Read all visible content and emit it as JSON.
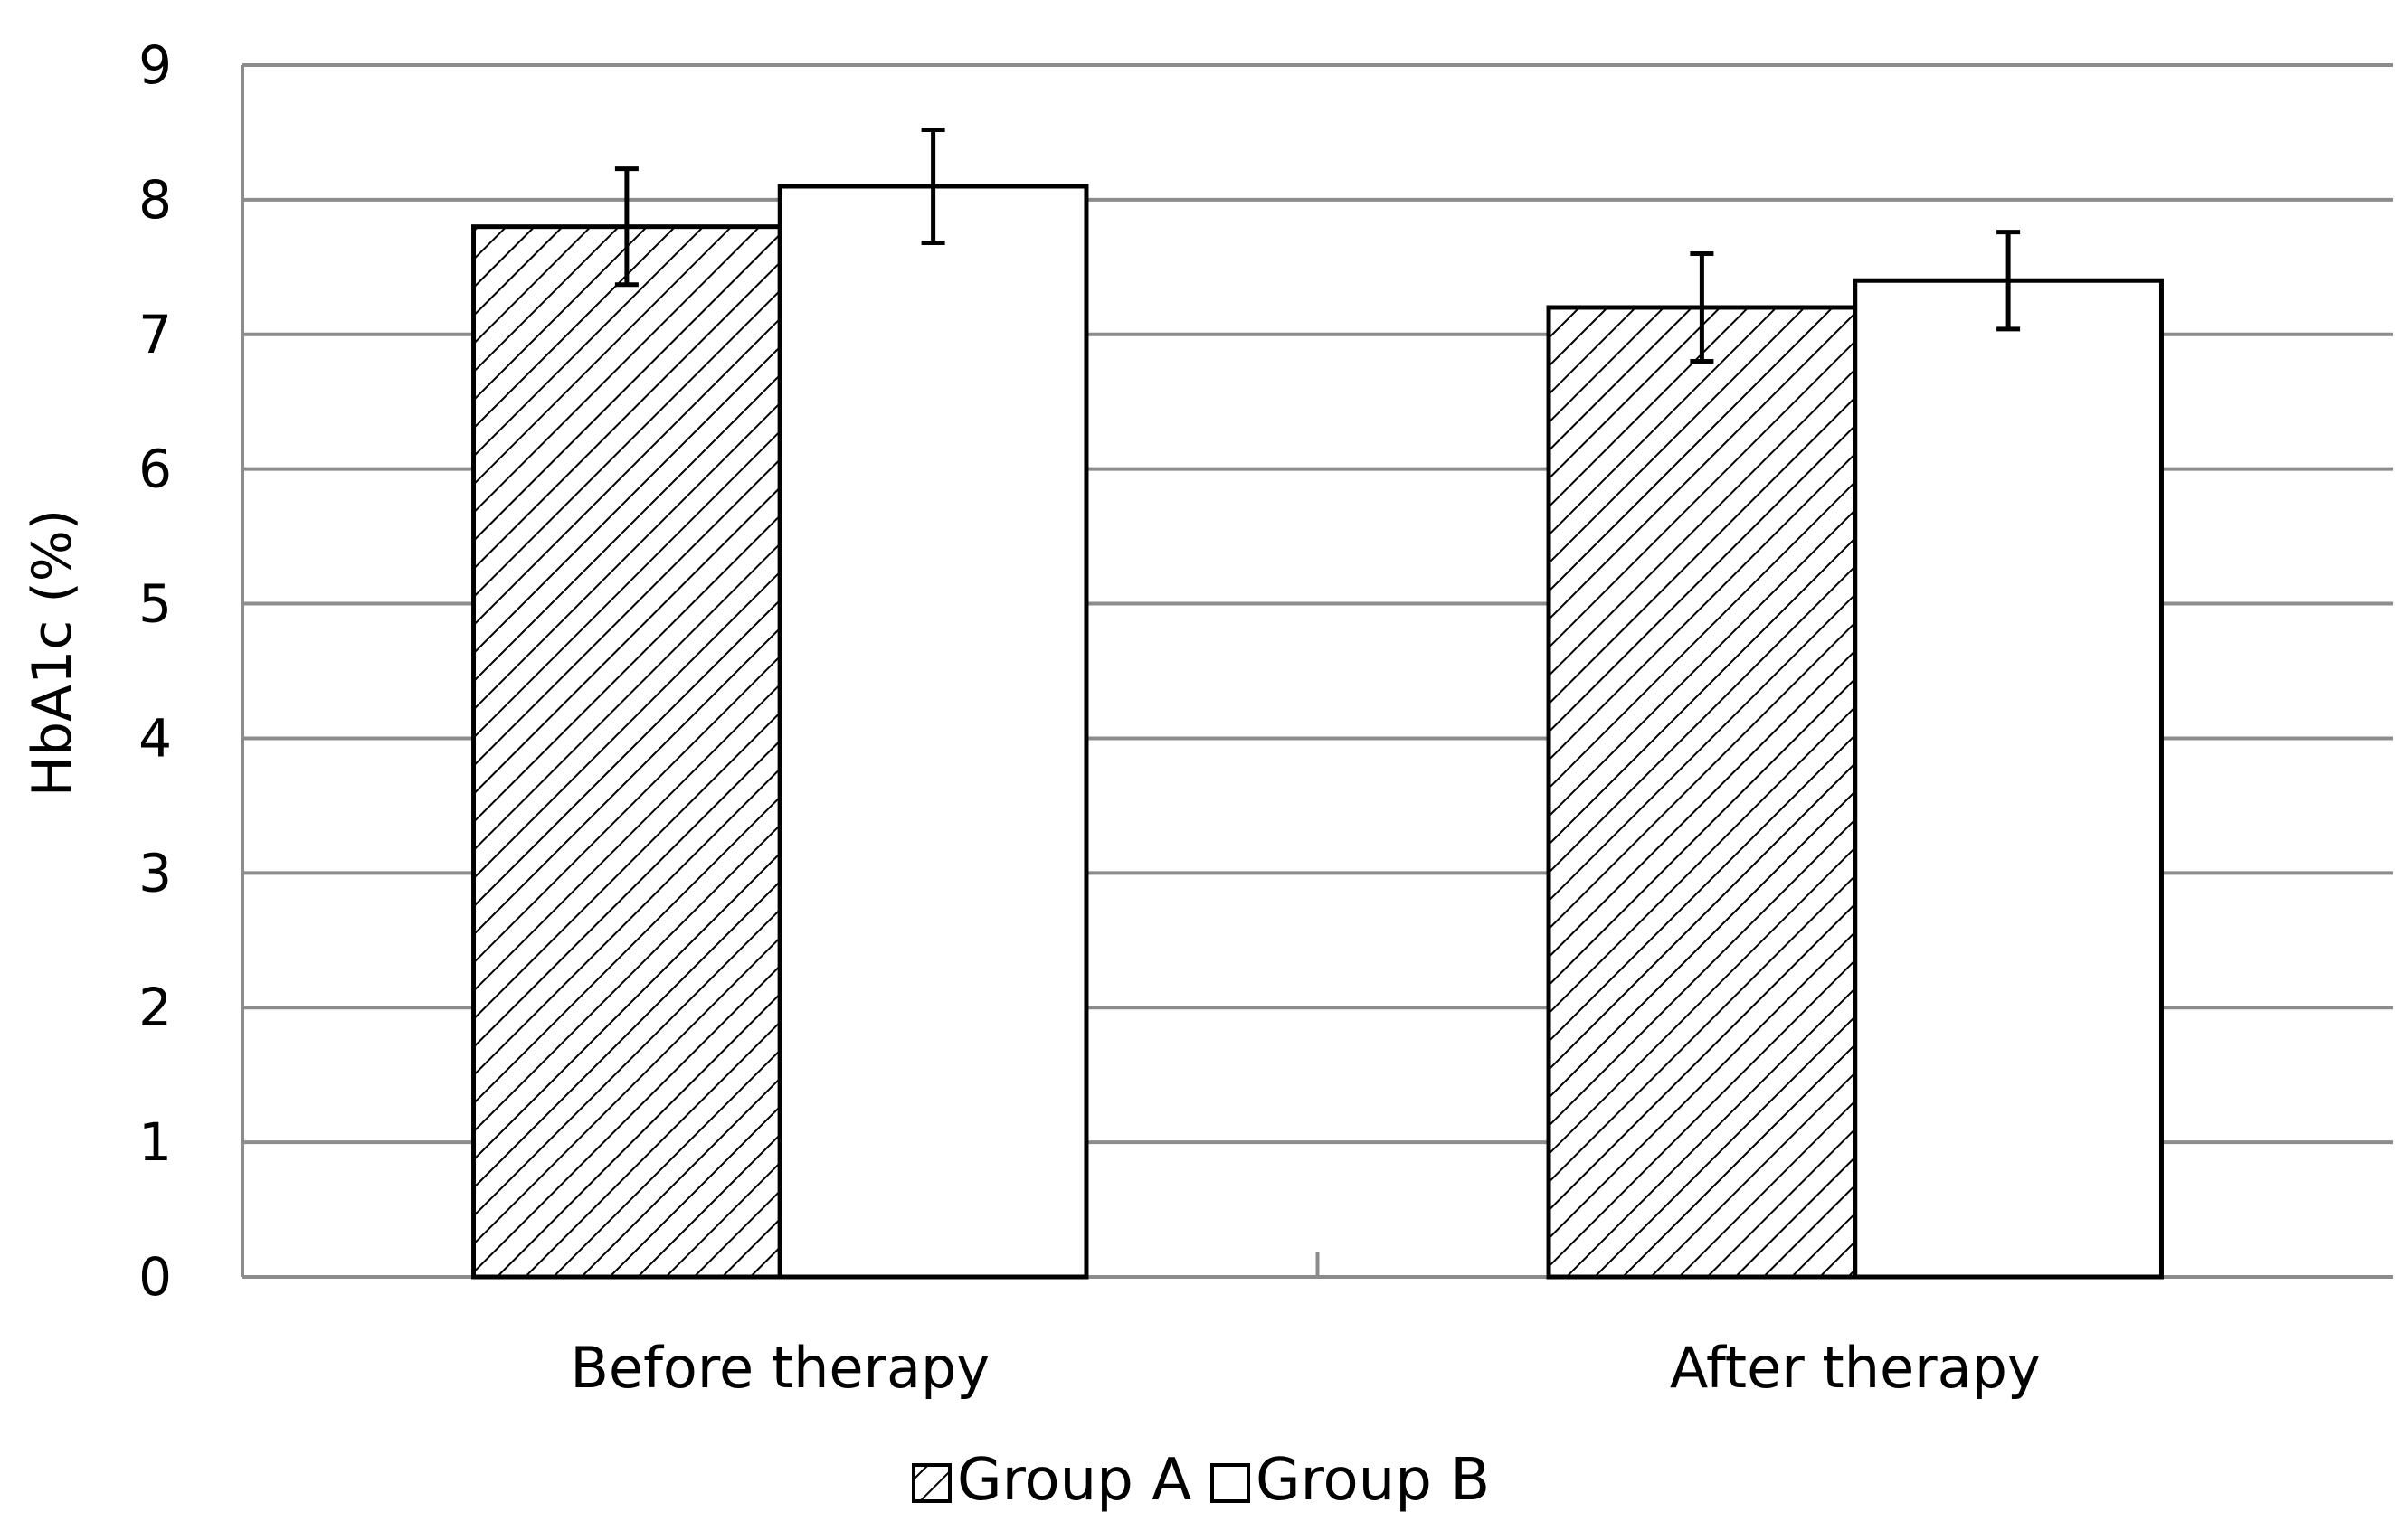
{
  "chart_data": {
    "type": "bar",
    "title": "",
    "xlabel": "",
    "ylabel": "HbA1c (%)",
    "ylim": [
      0,
      9
    ],
    "yticks": [
      "0",
      "1",
      "2",
      "3",
      "4",
      "5",
      "6",
      "7",
      "8",
      "9"
    ],
    "grid": true,
    "legend_position": "bottom",
    "categories": [
      "Before therapy",
      "After therapy"
    ],
    "series": [
      {
        "name": "Group A",
        "pattern": "diagonal-hatch",
        "fill": "#ffffff",
        "stroke": "#000000",
        "values": [
          7.8,
          7.2
        ],
        "errors": [
          0.43,
          0.4
        ]
      },
      {
        "name": "Group B",
        "pattern": "none",
        "fill": "#ffffff",
        "stroke": "#000000",
        "values": [
          8.1,
          7.4
        ],
        "errors": [
          0.42,
          0.36
        ]
      }
    ]
  }
}
